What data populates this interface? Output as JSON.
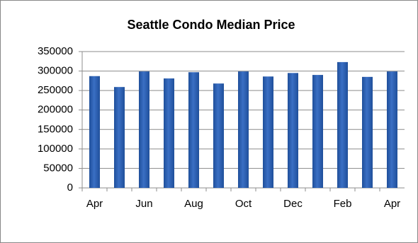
{
  "chart_data": {
    "type": "bar",
    "title": "Seattle Condo  Median Price",
    "categories": [
      "Apr",
      null,
      "Jun",
      null,
      "Aug",
      null,
      "Oct",
      null,
      "Dec",
      null,
      "Feb",
      null,
      "Apr"
    ],
    "values": [
      287000,
      259000,
      299000,
      281000,
      297000,
      268000,
      299000,
      286000,
      295000,
      290000,
      323000,
      285000,
      299000
    ],
    "color": "#3a6fc4",
    "ylim": [
      0,
      350000
    ],
    "yticks": [
      0,
      50000,
      100000,
      150000,
      200000,
      250000,
      300000,
      350000
    ],
    "grid": true
  }
}
